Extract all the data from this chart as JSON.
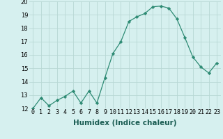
{
  "x": [
    0,
    1,
    2,
    3,
    4,
    5,
    6,
    7,
    8,
    9,
    10,
    11,
    12,
    13,
    14,
    15,
    16,
    17,
    18,
    19,
    20,
    21,
    22,
    23
  ],
  "y": [
    12.0,
    12.8,
    12.2,
    12.6,
    12.9,
    13.3,
    12.4,
    13.3,
    12.4,
    14.3,
    16.1,
    17.0,
    18.5,
    18.85,
    19.1,
    19.6,
    19.65,
    19.5,
    18.7,
    17.3,
    15.85,
    15.1,
    14.65,
    15.4
  ],
  "line_color": "#2e8b74",
  "marker": "D",
  "marker_size": 2.2,
  "bg_color": "#d6f0ef",
  "grid_color": "#b8d8d4",
  "xlabel": "Humidex (Indice chaleur)",
  "ylim": [
    12,
    20
  ],
  "xlim": [
    -0.5,
    23.5
  ],
  "yticks": [
    12,
    13,
    14,
    15,
    16,
    17,
    18,
    19,
    20
  ],
  "xtick_labels": [
    "0",
    "1",
    "2",
    "3",
    "4",
    "5",
    "6",
    "7",
    "8",
    "9",
    "10",
    "11",
    "12",
    "13",
    "14",
    "15",
    "16",
    "17",
    "18",
    "19",
    "20",
    "21",
    "22",
    "23"
  ],
  "axis_fontsize": 6.5,
  "tick_fontsize": 6.0,
  "xlabel_fontsize": 7.5
}
